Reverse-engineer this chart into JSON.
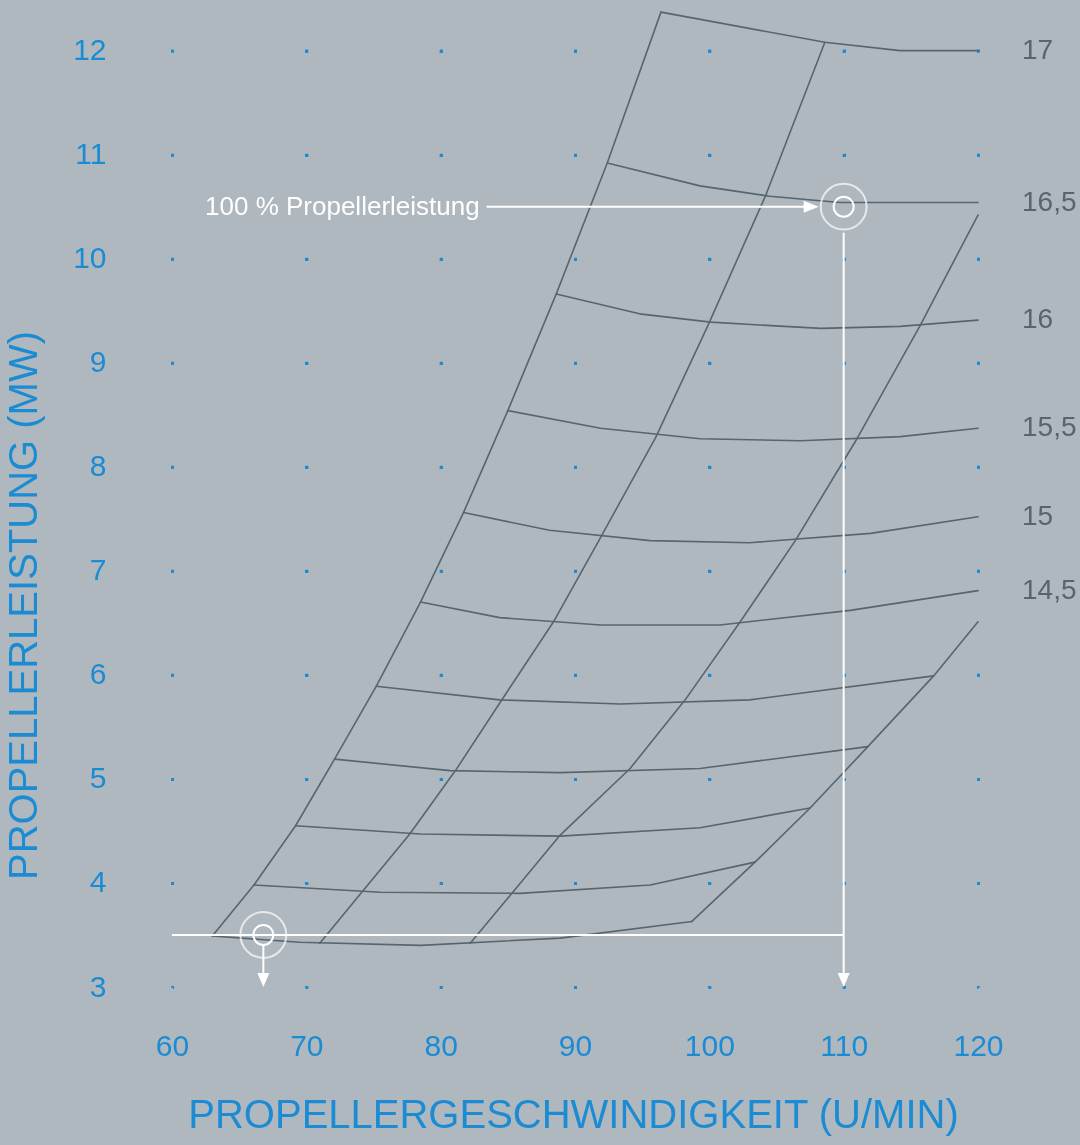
{
  "chart_data": {
    "type": "line",
    "xlabel": "PROPELLERGESCHWINDIGKEIT (U/MIN)",
    "ylabel": "PROPELLERLEISTUNG (MW)",
    "xlim": [
      60,
      120
    ],
    "ylim": [
      3,
      12.4
    ],
    "xticks": [
      60,
      70,
      80,
      90,
      100,
      110,
      120
    ],
    "yticks": [
      3,
      4,
      5,
      6,
      7,
      8,
      9,
      10,
      11,
      12
    ],
    "grid": true,
    "annotations": [
      "100 % Propellerleistung"
    ],
    "ref_lines": [
      {
        "axis": "y",
        "value": 3.5,
        "color": "#ffffff"
      }
    ],
    "series": [
      {
        "name": "17",
        "color": "#56656e",
        "x": [
          96.4,
          108.6,
          114.2,
          120
        ],
        "values": [
          12.37,
          12.08,
          12.0,
          12.0
        ]
      },
      {
        "name": "16,5",
        "color": "#56656e",
        "x": [
          92.4,
          99.3,
          104.5,
          109.7,
          120
        ],
        "values": [
          10.92,
          10.7,
          10.6,
          10.54,
          10.54
        ]
      },
      {
        "name": "16",
        "color": "#56656e",
        "x": [
          88.6,
          94.8,
          100.1,
          108.3,
          114.2,
          120
        ],
        "values": [
          9.66,
          9.47,
          9.39,
          9.33,
          9.35,
          9.41
        ]
      },
      {
        "name": "15,5",
        "color": "#56656e",
        "x": [
          85.0,
          91.9,
          99.3,
          106.8,
          114.2,
          120
        ],
        "values": [
          8.54,
          8.37,
          8.27,
          8.25,
          8.29,
          8.37
        ]
      },
      {
        "name": "15",
        "color": "#56656e",
        "x": [
          81.7,
          88.1,
          95.6,
          103.0,
          112.0,
          120
        ],
        "values": [
          7.56,
          7.39,
          7.29,
          7.27,
          7.36,
          7.52
        ]
      },
      {
        "name": "14,5",
        "color": "#56656e",
        "x": [
          78.5,
          84.4,
          91.9,
          100.8,
          110.5,
          120
        ],
        "values": [
          6.7,
          6.55,
          6.48,
          6.48,
          6.62,
          6.81
        ]
      },
      {
        "color": "#56656e",
        "x": [
          75.2,
          84.4,
          93.4,
          103.0,
          116.7
        ],
        "values": [
          5.89,
          5.76,
          5.72,
          5.76,
          5.99
        ]
      },
      {
        "color": "#56656e",
        "x": [
          72.1,
          80.7,
          88.9,
          99.3,
          111.8
        ],
        "values": [
          5.19,
          5.08,
          5.06,
          5.1,
          5.31
        ]
      },
      {
        "color": "#56656e",
        "x": [
          69.2,
          78.5,
          88.9,
          99.3,
          107.5
        ],
        "values": [
          4.55,
          4.47,
          4.45,
          4.53,
          4.72
        ]
      },
      {
        "color": "#56656e",
        "x": [
          66.1,
          75.5,
          85.9,
          95.6,
          103.4
        ],
        "values": [
          3.98,
          3.91,
          3.9,
          3.98,
          4.2
        ]
      },
      {
        "color": "#56656e",
        "x": [
          63.0,
          69.5,
          78.5,
          88.9,
          98.7
        ],
        "values": [
          3.49,
          3.43,
          3.4,
          3.47,
          3.63
        ]
      },
      {
        "color": "#56656e",
        "x": [
          63.0,
          66.1,
          69.2,
          72.1,
          75.2,
          78.5,
          81.7,
          85.0,
          88.6,
          92.4,
          96.4
        ],
        "values": [
          3.49,
          3.98,
          4.55,
          5.19,
          5.89,
          6.7,
          7.56,
          8.54,
          9.66,
          10.92,
          12.37
        ]
      },
      {
        "color": "#56656e",
        "x": [
          71.0,
          77.7,
          81.1,
          84.4,
          88.4,
          91.9,
          96.0,
          99.9,
          104.2,
          108.6
        ],
        "values": [
          3.42,
          4.47,
          5.08,
          5.73,
          6.51,
          7.32,
          8.28,
          9.36,
          10.61,
          12.08
        ]
      },
      {
        "color": "#56656e",
        "x": [
          82.2,
          88.9,
          94.1,
          98.2,
          102.3,
          106.4,
          110.9,
          115.7,
          120
        ],
        "values": [
          3.42,
          4.46,
          5.1,
          5.76,
          6.51,
          7.29,
          8.25,
          9.36,
          10.42
        ]
      },
      {
        "color": "#56656e",
        "x": [
          98.7,
          103.4,
          107.5,
          111.8,
          116.7,
          120
        ],
        "values": [
          3.63,
          4.2,
          4.72,
          5.31,
          5.99,
          6.51
        ]
      },
      {
        "type": "scatter",
        "marker": "circle",
        "color": "#ffffff",
        "x": [
          110,
          66.8
        ],
        "values": [
          10.5,
          3.5
        ]
      }
    ]
  }
}
